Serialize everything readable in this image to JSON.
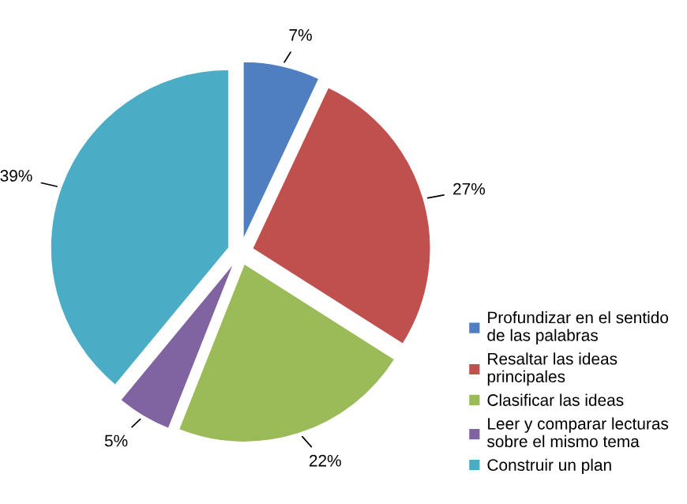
{
  "chart_data": {
    "type": "pie",
    "categories": [
      "Profundizar en el sentido\nde las palabras",
      "Resaltar las ideas\nprincipales",
      "Clasificar las ideas",
      "Leer y comparar lecturas\nsobre el mismo tema",
      "Construir un plan"
    ],
    "values": [
      7,
      27,
      22,
      5,
      39
    ],
    "value_labels": [
      "7%",
      "27%",
      "22%",
      "5%",
      "39%"
    ],
    "colors": [
      "#4f7fc0",
      "#c0504d",
      "#9bbb59",
      "#8064a2",
      "#4bacc6"
    ],
    "legend": "bottom right"
  }
}
